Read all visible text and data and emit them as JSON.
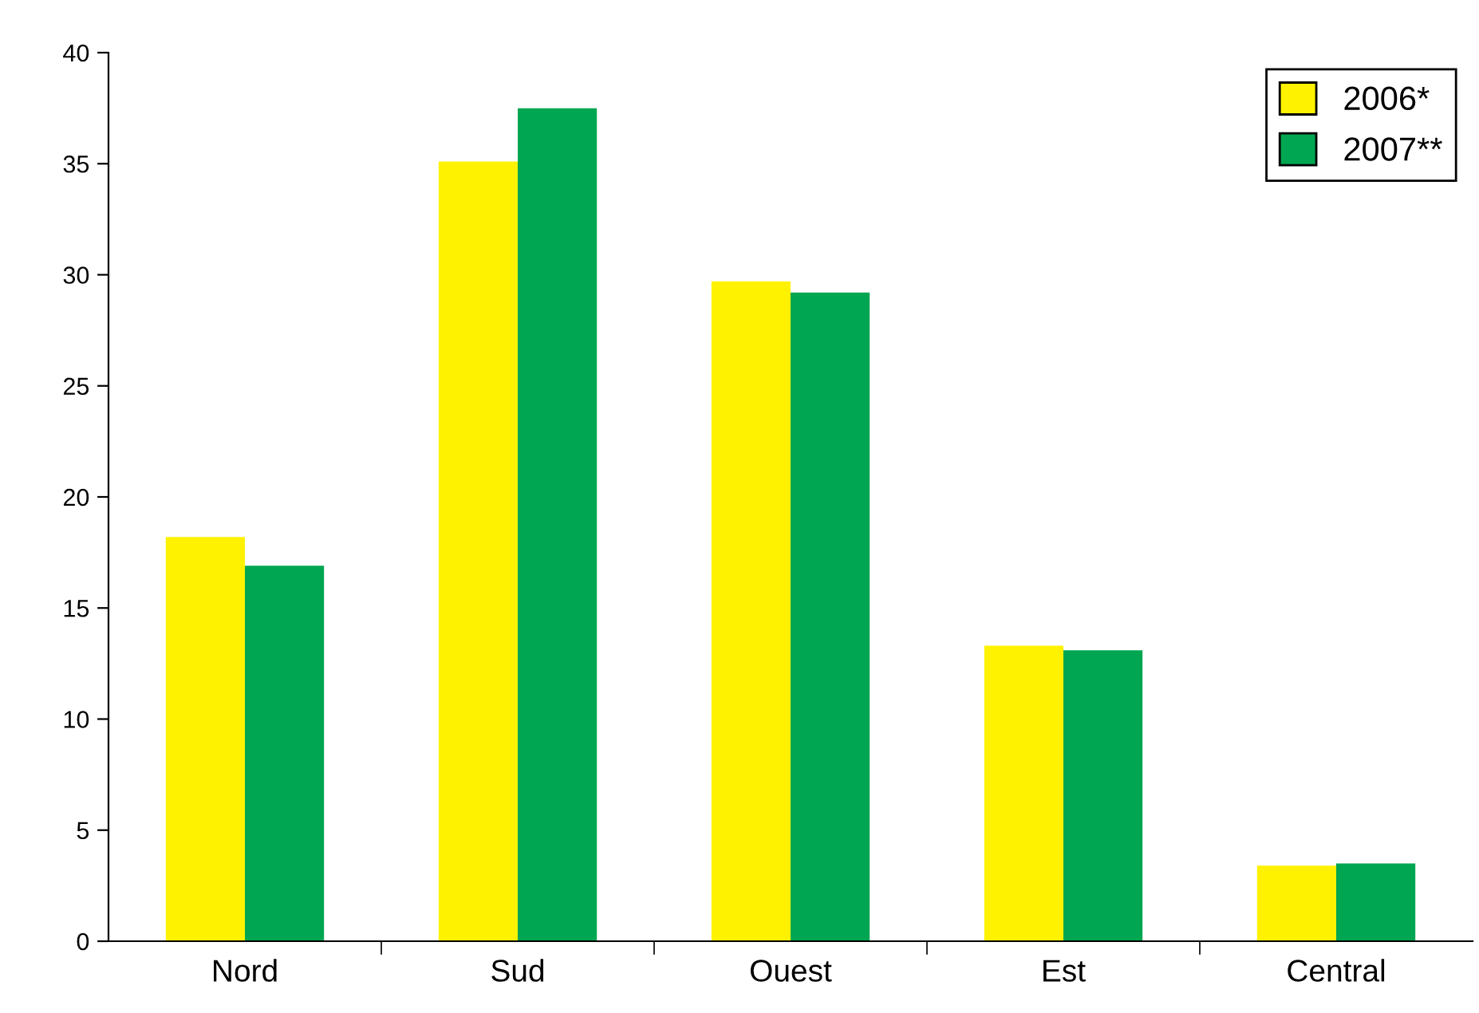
{
  "chart_data": {
    "type": "bar",
    "categories": [
      "Nord",
      "Sud",
      "Ouest",
      "Est",
      "Central"
    ],
    "series": [
      {
        "name": "2006*",
        "color": "#fff200",
        "values": [
          18.2,
          35.1,
          29.7,
          13.3,
          3.4
        ]
      },
      {
        "name": "2007**",
        "color": "#00a651",
        "values": [
          16.9,
          37.5,
          29.2,
          13.1,
          3.5
        ]
      }
    ],
    "ylim": [
      0,
      40
    ],
    "yticks": [
      0,
      5,
      10,
      15,
      20,
      25,
      30,
      35,
      40
    ],
    "grid": false,
    "legend": "top right"
  }
}
